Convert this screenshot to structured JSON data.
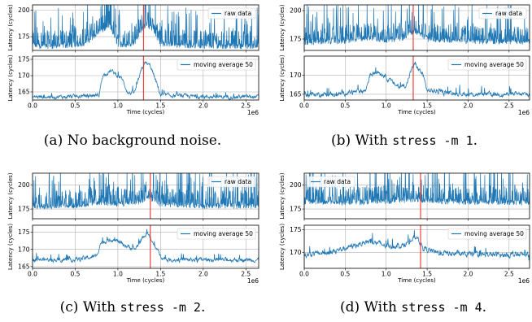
{
  "chart_data": [
    {
      "id": "a",
      "caption": {
        "prefix": "(a) No background noise.",
        "command": "",
        "suffix": ""
      },
      "panels": [
        {
          "type": "line",
          "xlabel": "",
          "ylabel": "Latency (cycles)",
          "ylim": [
            162,
            205
          ],
          "yticks": [
            175,
            200
          ],
          "xlim": [
            0,
            2.65
          ],
          "xticks": [
            "0.0",
            "0.5",
            "1.0",
            "1.5",
            "2.0",
            "2.5"
          ],
          "legend": {
            "text": "raw data",
            "position": "top-right"
          },
          "series_color": "#1f77b4",
          "grid": true,
          "red_marker_x": 1.3,
          "series": [
            {
              "name": "raw data",
              "x": [
                0,
                0.3,
                0.6,
                0.8,
                0.9,
                1.0,
                1.1,
                1.2,
                1.3,
                1.4,
                1.5,
                2.0,
                2.65
              ],
              "y": [
                166,
                166,
                168,
                180,
                185,
                168,
                166,
                170,
                185,
                183,
                168,
                166,
                166
              ]
            }
          ]
        },
        {
          "type": "line",
          "xlabel": "Time (cycles)",
          "ylabel": "Latency (cycles)",
          "ylim": [
            162.5,
            176
          ],
          "yticks": [
            165,
            170,
            175
          ],
          "xlim": [
            0,
            2.65
          ],
          "xticks": [
            "0.0",
            "0.5",
            "1.0",
            "1.5",
            "2.0",
            "2.5"
          ],
          "x_exponent": "1e6",
          "legend": {
            "text": "moving average 50",
            "position": "top-right"
          },
          "series_color": "#1f77b4",
          "grid": true,
          "red_marker_x": 1.3,
          "series": [
            {
              "name": "moving average 50",
              "x": [
                0,
                0.4,
                0.78,
                0.82,
                0.92,
                1.0,
                1.05,
                1.12,
                1.2,
                1.28,
                1.32,
                1.38,
                1.45,
                1.5,
                2.0,
                2.65
              ],
              "y": [
                163.5,
                163.5,
                164,
                170,
                171.5,
                170,
                169,
                164.5,
                165,
                172,
                174,
                173,
                168,
                164,
                163.5,
                163.5
              ]
            }
          ]
        }
      ]
    },
    {
      "id": "b",
      "caption": {
        "prefix": "(b) With ",
        "command": "stress -m 1",
        "suffix": "."
      },
      "panels": [
        {
          "type": "line",
          "xlabel": "",
          "ylabel": "Latency (cycles)",
          "ylim": [
            165,
            205
          ],
          "yticks": [
            175,
            200
          ],
          "xlim": [
            0,
            2.75
          ],
          "xticks": [
            "0.0",
            "0.5",
            "1.0",
            "1.5",
            "2.0",
            "2.5"
          ],
          "legend": {
            "text": "raw data",
            "position": "top-right"
          },
          "series_color": "#1f77b4",
          "grid": true,
          "red_marker_x": 1.33,
          "series": [
            {
              "name": "raw data",
              "x": [
                0,
                0.5,
                0.8,
                1.0,
                1.2,
                1.35,
                1.5,
                2.0,
                2.75
              ],
              "y": [
                172,
                173,
                176,
                174,
                176,
                182,
                175,
                173,
                172
              ]
            }
          ]
        },
        {
          "type": "line",
          "xlabel": "Time (cycles)",
          "ylabel": "Latency (cycles)",
          "ylim": [
            163.5,
            175
          ],
          "yticks": [
            165,
            170
          ],
          "xlim": [
            0,
            2.75
          ],
          "xticks": [
            "0.0",
            "0.5",
            "1.0",
            "1.5",
            "2.0",
            "2.5"
          ],
          "x_exponent": "1e6",
          "legend": {
            "text": "moving average 50",
            "position": "top-right"
          },
          "series_color": "#1f77b4",
          "grid": true,
          "red_marker_x": 1.33,
          "series": [
            {
              "name": "moving average 50",
              "x": [
                0,
                0.4,
                0.75,
                0.8,
                0.9,
                1.0,
                1.08,
                1.15,
                1.25,
                1.3,
                1.35,
                1.45,
                1.5,
                2.0,
                2.75
              ],
              "y": [
                165,
                165,
                166,
                170,
                171,
                169.5,
                168,
                167,
                167.5,
                171,
                173,
                170,
                166,
                165,
                165
              ]
            }
          ]
        }
      ]
    },
    {
      "id": "c",
      "caption": {
        "prefix": "(c) With ",
        "command": "stress -m 2",
        "suffix": "."
      },
      "panels": [
        {
          "type": "line",
          "xlabel": "",
          "ylabel": "Latency (cycles)",
          "ylim": [
            165,
            212
          ],
          "yticks": [
            175,
            200
          ],
          "xlim": [
            0,
            2.65
          ],
          "xticks": [
            "0.0",
            "0.5",
            "1.0",
            "1.5",
            "2.0",
            "2.5"
          ],
          "legend": {
            "text": "raw data",
            "position": "top-right"
          },
          "series_color": "#1f77b4",
          "grid": true,
          "red_marker_x": 1.38,
          "series": [
            {
              "name": "raw data",
              "x": [
                0,
                0.5,
                0.8,
                1.0,
                1.2,
                1.35,
                1.5,
                2.0,
                2.65
              ],
              "y": [
                178,
                178,
                182,
                180,
                181,
                186,
                180,
                178,
                178
              ]
            }
          ]
        },
        {
          "type": "line",
          "xlabel": "Time (cycles)",
          "ylabel": "Latency (cycles)",
          "ylim": [
            164.5,
            177
          ],
          "yticks": [
            165,
            170,
            175
          ],
          "xlim": [
            0,
            2.65
          ],
          "xticks": [
            "0.0",
            "0.5",
            "1.0",
            "1.5",
            "2.0",
            "2.5"
          ],
          "x_exponent": "1e6",
          "legend": {
            "text": "moving average 50",
            "position": "top-right"
          },
          "series_color": "#1f77b4",
          "grid": true,
          "red_marker_x": 1.38,
          "series": [
            {
              "name": "moving average 50",
              "x": [
                0,
                0.5,
                0.75,
                0.8,
                0.95,
                1.1,
                1.2,
                1.28,
                1.35,
                1.4,
                1.48,
                1.55,
                2.0,
                2.65
              ],
              "y": [
                167,
                167,
                168,
                172,
                173,
                171,
                170,
                173,
                175,
                172,
                169,
                167,
                167,
                167
              ]
            }
          ]
        }
      ]
    },
    {
      "id": "d",
      "caption": {
        "prefix": "(d) With ",
        "command": "stress -m 4",
        "suffix": "."
      },
      "panels": [
        {
          "type": "line",
          "xlabel": "",
          "ylabel": "Latency (cycles)",
          "ylim": [
            165,
            212
          ],
          "yticks": [
            175,
            200
          ],
          "xlim": [
            0,
            2.75
          ],
          "xticks": [
            "0.0",
            "0.5",
            "1.0",
            "1.5",
            "2.0",
            "2.5"
          ],
          "legend": {
            "text": "raw data",
            "position": "top-left"
          },
          "series_color": "#1f77b4",
          "grid": true,
          "red_marker_x": 1.42,
          "series": [
            {
              "name": "raw data",
              "x": [
                0,
                0.5,
                1.0,
                1.4,
                1.5,
                2.0,
                2.75
              ],
              "y": [
                182,
                182,
                183,
                185,
                183,
                182,
                182
              ]
            }
          ]
        },
        {
          "type": "line",
          "xlabel": "Time (cycles)",
          "ylabel": "Latency (cycles)",
          "ylim": [
            166.5,
            176
          ],
          "yticks": [
            170,
            175
          ],
          "xlim": [
            0,
            2.75
          ],
          "xticks": [
            "0.0",
            "0.5",
            "1.0",
            "1.5",
            "2.0",
            "2.5"
          ],
          "x_exponent": "1e6",
          "legend": {
            "text": "moving average 50",
            "position": "top-right"
          },
          "series_color": "#1f77b4",
          "grid": true,
          "red_marker_x": 1.42,
          "series": [
            {
              "name": "moving average 50",
              "x": [
                0,
                0.3,
                0.6,
                0.8,
                1.0,
                1.2,
                1.38,
                1.45,
                1.6,
                2.0,
                2.75
              ],
              "y": [
                169.5,
                170,
                171.5,
                172.5,
                171.5,
                171.5,
                173.5,
                171,
                170,
                169.5,
                169.5
              ]
            }
          ]
        }
      ]
    }
  ]
}
